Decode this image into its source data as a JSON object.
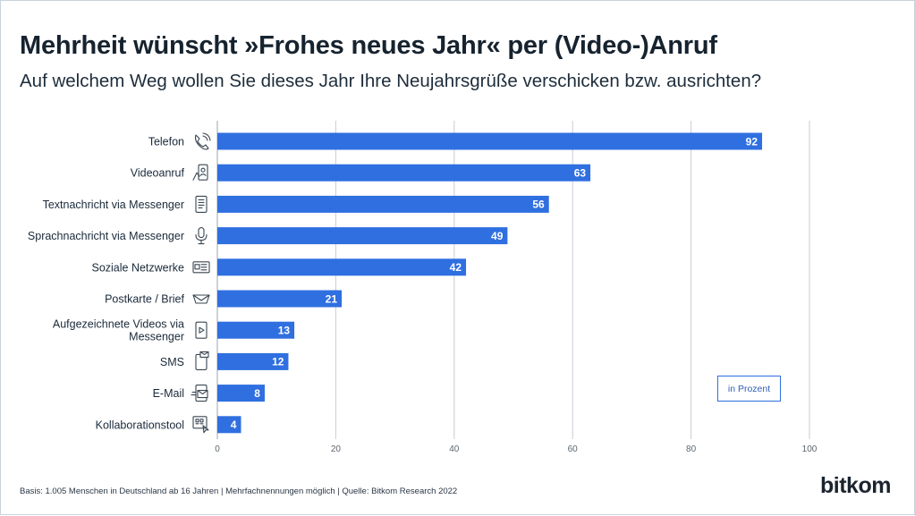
{
  "header": {
    "title": "Mehrheit wünscht »Frohes neues Jahr« per (Video-)Anruf",
    "subtitle": "Auf welchem Weg wollen Sie dieses Jahr Ihre Neujahrsgrüße verschicken bzw. ausrichten?"
  },
  "chart_data": {
    "type": "bar",
    "orientation": "horizontal",
    "categories": [
      "Telefon",
      "Videoanruf",
      "Textnachricht via Messenger",
      "Sprachnachricht via Messenger",
      "Soziale Netzwerke",
      "Postkarte / Brief",
      "Aufgezeichnete Videos via Messenger",
      "SMS",
      "E-Mail",
      "Kollaborationstool"
    ],
    "category_lines": [
      [
        "Telefon"
      ],
      [
        "Videoanruf"
      ],
      [
        "Textnachricht via Messenger"
      ],
      [
        "Sprachnachricht via Messenger"
      ],
      [
        "Soziale Netzwerke"
      ],
      [
        "Postkarte / Brief"
      ],
      [
        "Aufgezeichnete Videos via",
        "Messenger"
      ],
      [
        "SMS"
      ],
      [
        "E-Mail"
      ],
      [
        "Kollaborationstool"
      ]
    ],
    "icons": [
      "phone-icon",
      "video-call-icon",
      "text-message-icon",
      "microphone-icon",
      "social-network-icon",
      "postcard-icon",
      "video-message-icon",
      "sms-icon",
      "email-icon",
      "collaboration-tool-icon"
    ],
    "values": [
      92,
      63,
      56,
      49,
      42,
      21,
      13,
      12,
      8,
      4
    ],
    "xlim": [
      0,
      100
    ],
    "xticks": [
      0,
      20,
      40,
      60,
      80,
      100
    ],
    "grid": true,
    "unit_label": "in Prozent",
    "bar_color": "#2f6fe0",
    "title": "Mehrheit wünscht »Frohes neues Jahr« per (Video-)Anruf",
    "xlabel": "",
    "ylabel": ""
  },
  "footer": {
    "source": "Basis: 1.005 Menschen in Deutschland ab 16 Jahren | Mehrfachnennungen möglich | Quelle: Bitkom Research 2022",
    "logo": "bitkom"
  }
}
